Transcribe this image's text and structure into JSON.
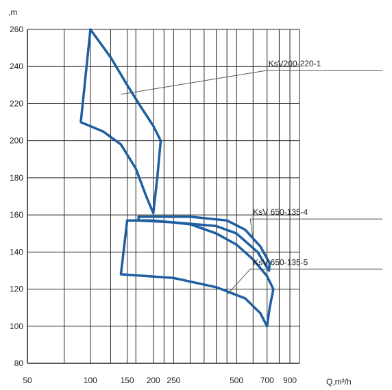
{
  "chart_data": {
    "type": "area",
    "xscale": "log",
    "xlabel": "Q,m³/h",
    "ylabel": ",m",
    "xlim": [
      50,
      1000
    ],
    "ylim": [
      80,
      260
    ],
    "grid": true,
    "x_ticks": [
      50,
      100,
      150,
      200,
      250,
      500,
      700,
      900
    ],
    "y_ticks": [
      80,
      100,
      120,
      140,
      160,
      180,
      200,
      220,
      240,
      260
    ],
    "x_grid": [
      75,
      100,
      125,
      150,
      165,
      200,
      225,
      250,
      300,
      350,
      400,
      450,
      500,
      600,
      700,
      800,
      900,
      1000
    ],
    "line_color": "#1f5ea0",
    "series": [
      {
        "name": "KsV200-220-1",
        "label_point": [
          710,
          240
        ],
        "anchor_point": [
          140,
          225
        ],
        "outline": [
          [
            100,
            260
          ],
          [
            125,
            245
          ],
          [
            150,
            230
          ],
          [
            175,
            218
          ],
          [
            200,
            208
          ],
          [
            217,
            200
          ],
          [
            209,
            180
          ],
          [
            200,
            161
          ],
          [
            185,
            170
          ],
          [
            165,
            185
          ],
          [
            140,
            198
          ],
          [
            115,
            205
          ],
          [
            90,
            210
          ],
          [
            100,
            260
          ]
        ]
      },
      {
        "name": "KsV  650-135-4",
        "label_point": [
          600,
          160
        ],
        "anchor_point": [
          600,
          146
        ],
        "outline": [
          [
            170,
            159
          ],
          [
            200,
            159
          ],
          [
            300,
            159
          ],
          [
            450,
            157
          ],
          [
            550,
            152
          ],
          [
            650,
            143
          ],
          [
            720,
            134
          ],
          [
            715,
            130
          ],
          [
            630,
            140
          ],
          [
            500,
            150
          ],
          [
            400,
            154
          ],
          [
            250,
            156
          ],
          [
            170,
            157
          ],
          [
            170,
            159
          ]
        ]
      },
      {
        "name": "KsV  650-135-5",
        "label_point": [
          600,
          133
        ],
        "anchor_point": [
          450,
          117
        ],
        "outline": [
          [
            150,
            157
          ],
          [
            200,
            157
          ],
          [
            300,
            155
          ],
          [
            400,
            150
          ],
          [
            500,
            144
          ],
          [
            600,
            136
          ],
          [
            700,
            127
          ],
          [
            750,
            120
          ],
          [
            720,
            110
          ],
          [
            700,
            100
          ],
          [
            650,
            107
          ],
          [
            550,
            115
          ],
          [
            400,
            121
          ],
          [
            250,
            126
          ],
          [
            140,
            128
          ],
          [
            150,
            157
          ]
        ]
      }
    ]
  }
}
